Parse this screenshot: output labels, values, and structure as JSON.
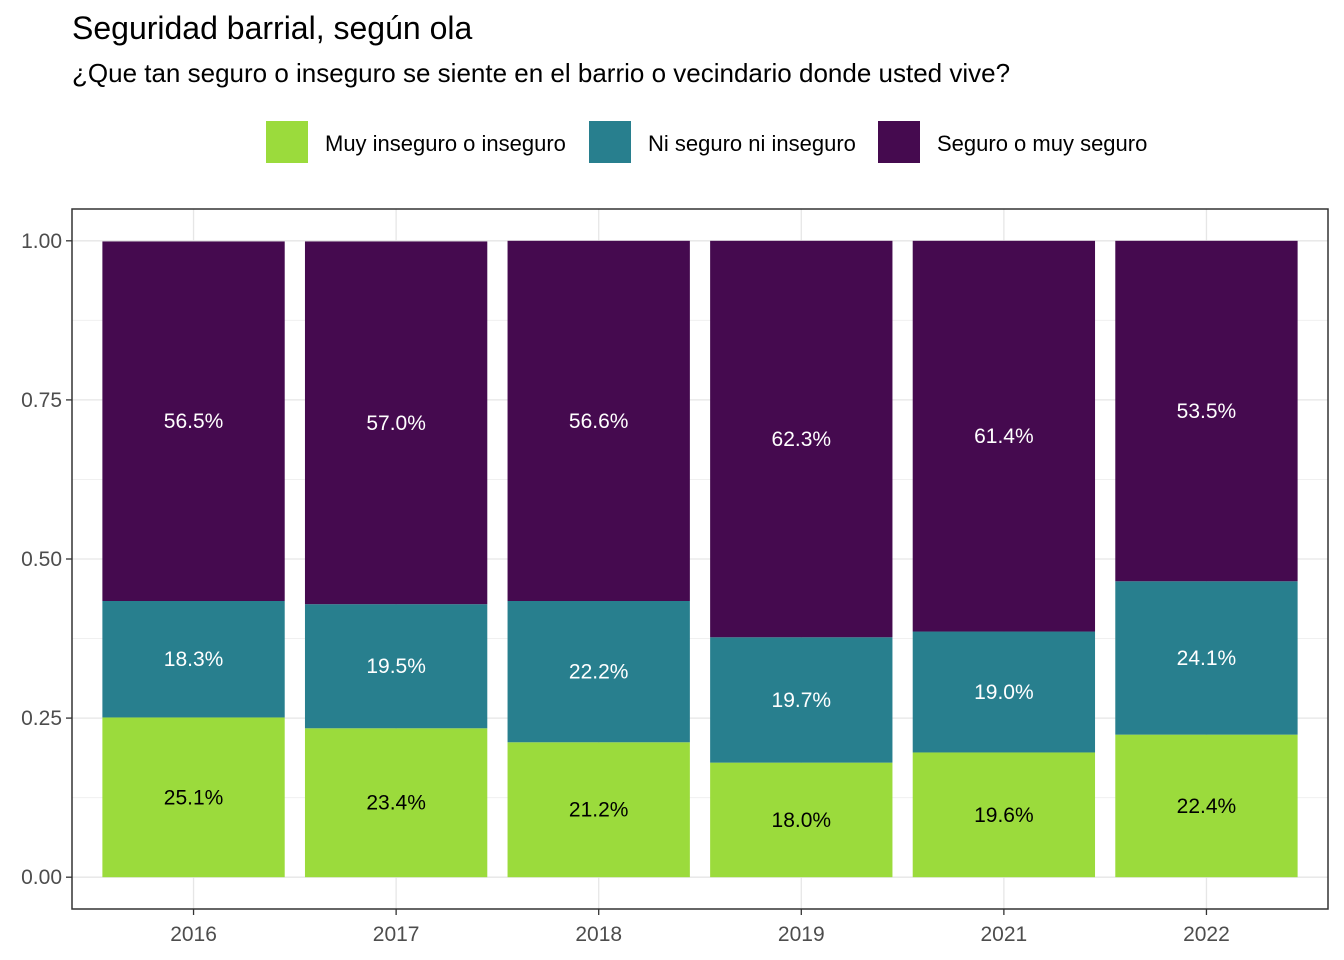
{
  "chart_data": {
    "type": "bar",
    "stacked": true,
    "title": "Seguridad barrial, según ola",
    "subtitle": "¿Que tan seguro o inseguro se siente en el barrio o vecindario donde usted vive?",
    "categories": [
      "2016",
      "2017",
      "2018",
      "2019",
      "2021",
      "2022"
    ],
    "series": [
      {
        "name": "Muy inseguro o inseguro",
        "color": "#9bdb3c",
        "label_color": "#000000",
        "values": [
          0.251,
          0.234,
          0.212,
          0.18,
          0.196,
          0.224
        ],
        "labels": [
          "25.1%",
          "23.4%",
          "21.2%",
          "18.0%",
          "19.6%",
          "22.4%"
        ]
      },
      {
        "name": "Ni seguro ni inseguro",
        "color": "#287f8e",
        "label_color": "#ffffff",
        "values": [
          0.183,
          0.195,
          0.222,
          0.197,
          0.19,
          0.241
        ],
        "labels": [
          "18.3%",
          "19.5%",
          "22.2%",
          "19.7%",
          "19.0%",
          "24.1%"
        ]
      },
      {
        "name": "Seguro o muy seguro",
        "color": "#450a4f",
        "label_color": "#ffffff",
        "values": [
          0.565,
          0.57,
          0.566,
          0.623,
          0.614,
          0.535
        ],
        "labels": [
          "56.5%",
          "57.0%",
          "56.6%",
          "62.3%",
          "61.4%",
          "53.5%"
        ]
      }
    ],
    "y_ticks": [
      "0.00",
      "0.25",
      "0.50",
      "0.75",
      "1.00"
    ],
    "ylim": [
      -0.05,
      1.05
    ],
    "grid": true,
    "legend_position": "top"
  }
}
